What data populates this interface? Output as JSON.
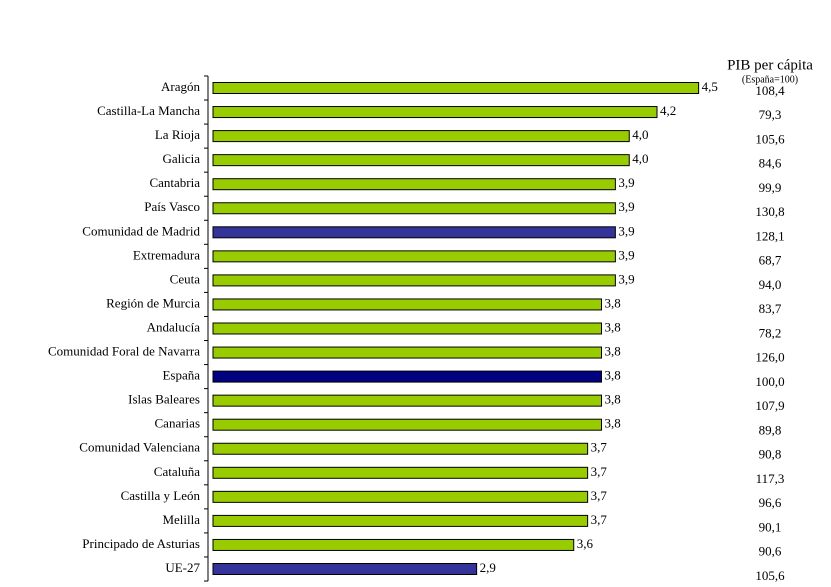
{
  "chart_data": {
    "type": "bar",
    "orientation": "horizontal",
    "categories": [
      "Aragón",
      "Castilla-La Mancha",
      "La Rioja",
      "Galicia",
      "Cantabria",
      "País Vasco",
      "Comunidad de Madrid",
      "Extremadura",
      "Ceuta",
      "Región de Murcia",
      "Andalucía",
      "Comunidad Foral de Navarra",
      "España",
      "Islas Baleares",
      "Canarias",
      "Comunidad Valenciana",
      "Cataluña",
      "Castilla y León",
      "Melilla",
      "Principado de Asturias",
      "UE-27"
    ],
    "values": [
      4.5,
      4.2,
      4.0,
      4.0,
      3.9,
      3.9,
      3.9,
      3.9,
      3.9,
      3.8,
      3.8,
      3.8,
      3.8,
      3.8,
      3.8,
      3.7,
      3.7,
      3.7,
      3.7,
      3.6,
      2.9
    ],
    "value_labels": [
      "4,5",
      "4,2",
      "4,0",
      "4,0",
      "3,9",
      "3,9",
      "3,9",
      "3,9",
      "3,9",
      "3,8",
      "3,8",
      "3,8",
      "3,8",
      "3,8",
      "3,8",
      "3,7",
      "3,7",
      "3,7",
      "3,7",
      "3,6",
      "2,9"
    ],
    "colors": [
      "#99cc00",
      "#99cc00",
      "#99cc00",
      "#99cc00",
      "#99cc00",
      "#99cc00",
      "#333399",
      "#99cc00",
      "#99cc00",
      "#99cc00",
      "#99cc00",
      "#99cc00",
      "#000080",
      "#99cc00",
      "#99cc00",
      "#99cc00",
      "#99cc00",
      "#99cc00",
      "#99cc00",
      "#99cc00",
      "#333399"
    ],
    "xlim": [
      1,
      5
    ],
    "side_column": {
      "title": "PIB per cápita",
      "subtitle": "(España=100)",
      "labels": [
        "108,4",
        "79,3",
        "105,6",
        "84,6",
        "99,9",
        "130,8",
        "128,1",
        "68,7",
        "94,0",
        "83,7",
        "78,2",
        "126,0",
        "100,0",
        "107,9",
        "89,8",
        "90,8",
        "117,3",
        "96,6",
        "90,1",
        "90,6",
        "105,6"
      ]
    }
  }
}
